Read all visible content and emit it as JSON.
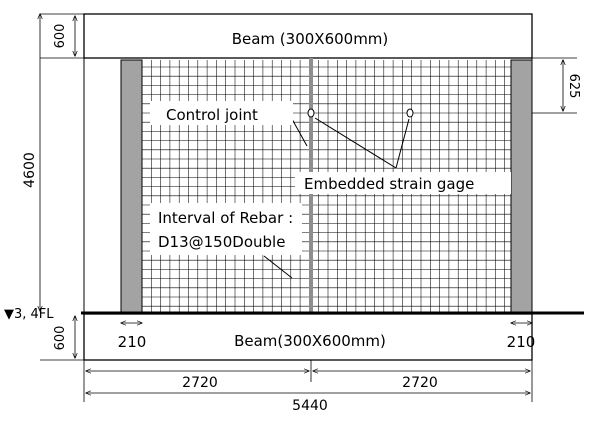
{
  "labels": {
    "beam_top": "Beam (300X600mm)",
    "beam_bottom": "Beam(300X600mm)",
    "control_joint": "Control joint",
    "strain_gage": "Embedded strain gage",
    "rebar_line1": "Interval of Rebar :",
    "rebar_line2": "D13@150Double",
    "floor_level": "▼3, 4FL"
  },
  "dimensions": {
    "top_beam_height": "600",
    "bottom_beam_height": "600",
    "wall_height": "4600",
    "gage_offset": "625",
    "column_left_width": "210",
    "column_right_width": "210",
    "half_span_left": "2720",
    "half_span_right": "2720",
    "total_span": "5440"
  },
  "colors": {
    "column": "#a3a3a3",
    "control_joint": "#8e8e8e",
    "grid": "#000000"
  }
}
